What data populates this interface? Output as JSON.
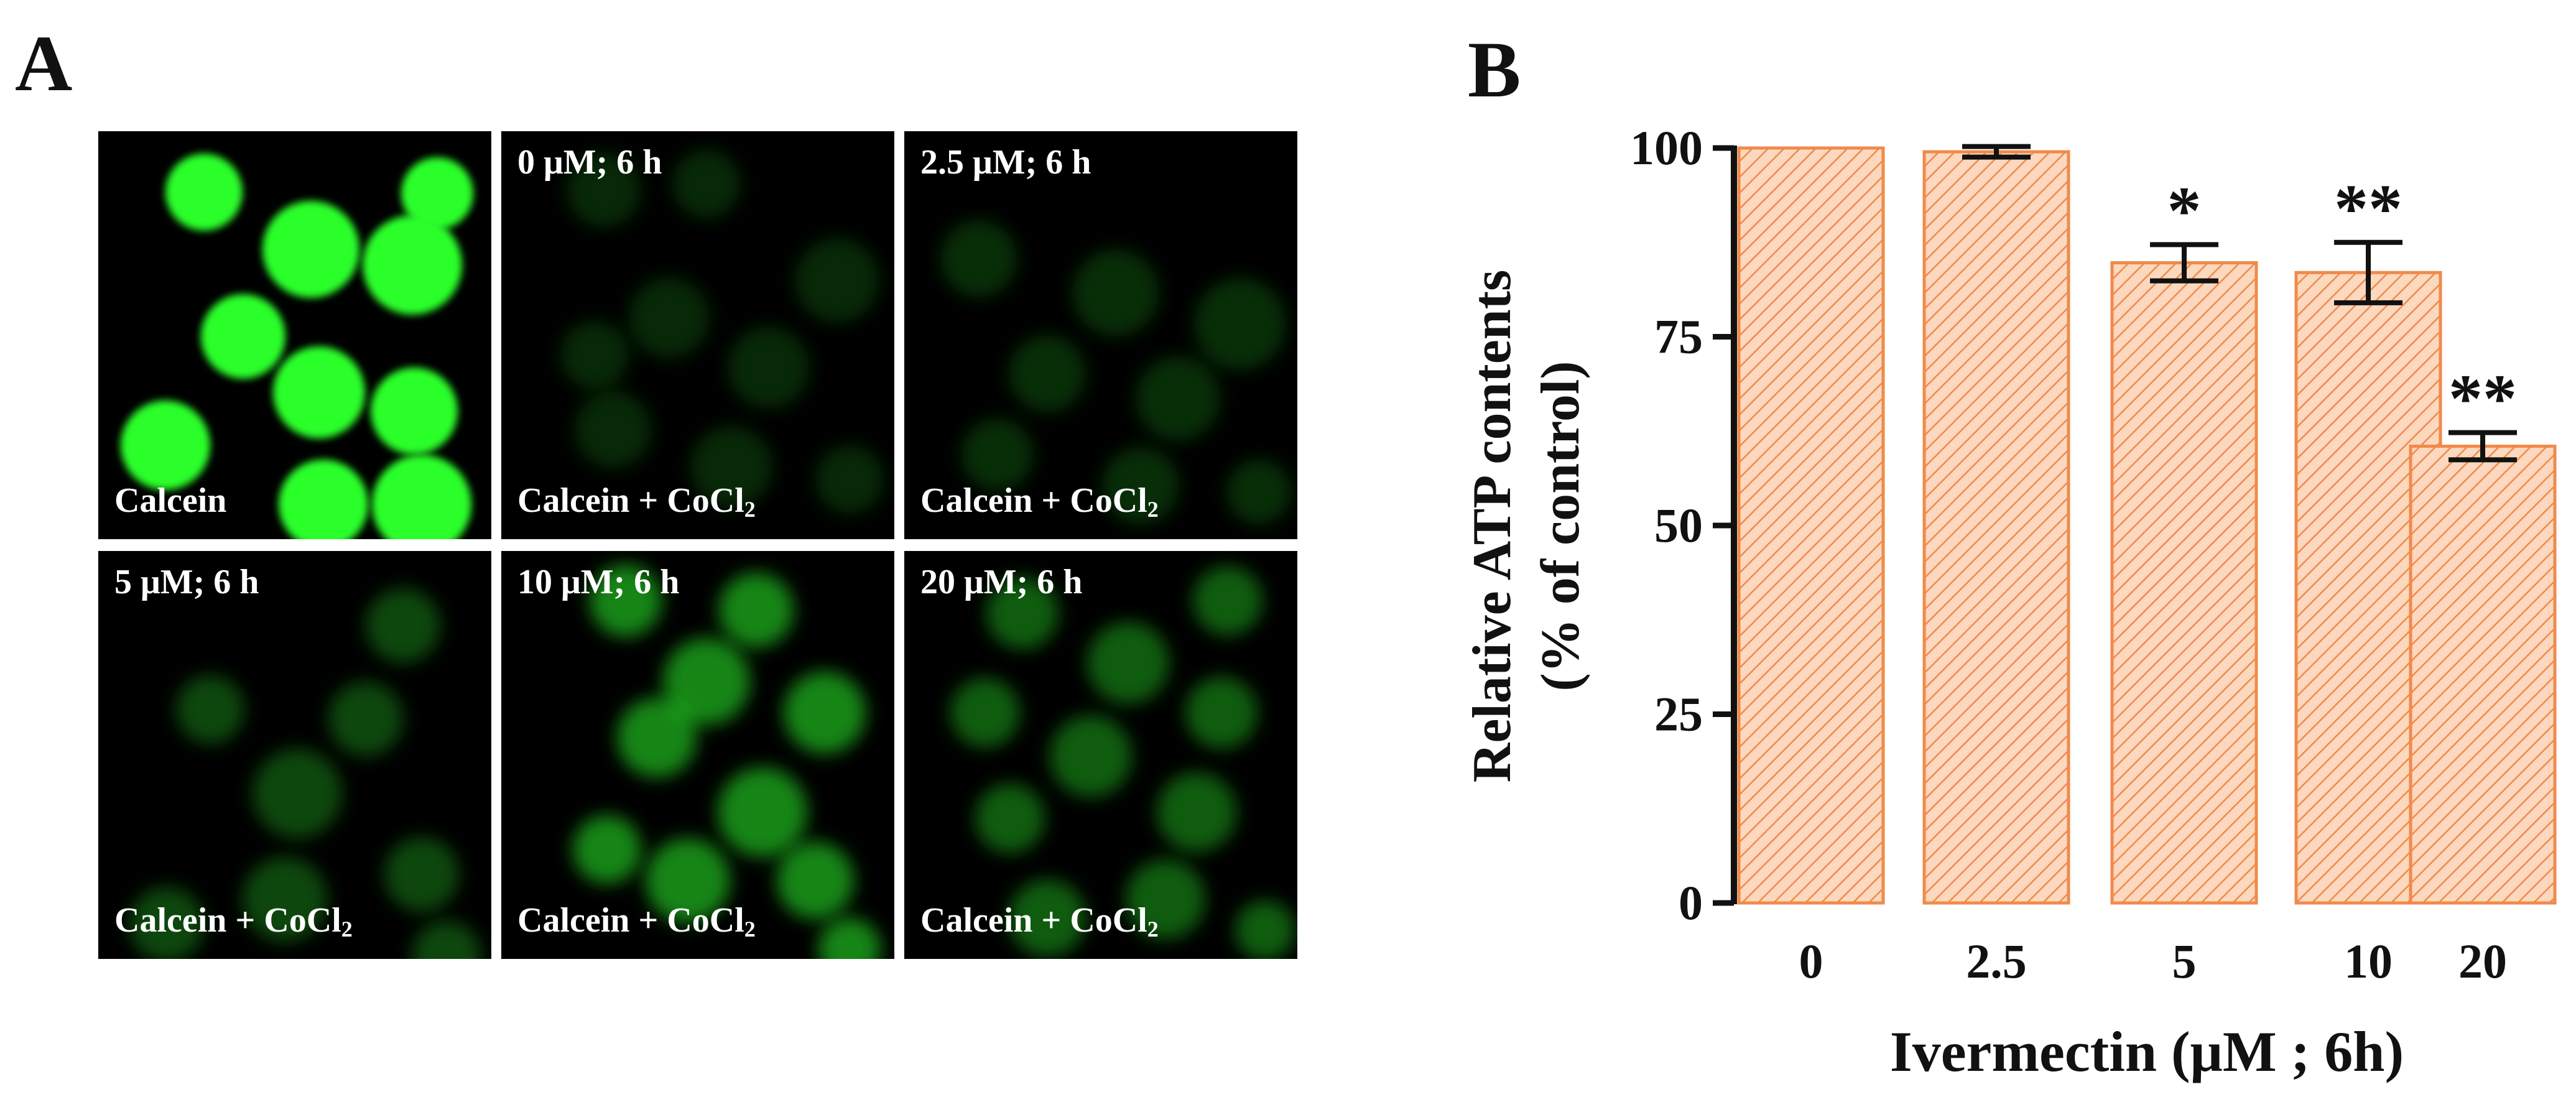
{
  "panel_a": {
    "letter": "A",
    "tiles": [
      {
        "condition": "",
        "label": "Calcein",
        "sub": "",
        "intensity": 1.0
      },
      {
        "condition": "0 μM; 6 h",
        "label": "Calcein + CoCl",
        "sub": "2",
        "intensity": 0.16
      },
      {
        "condition": "2.5 μM; 6 h",
        "label": "Calcein + CoCl",
        "sub": "2",
        "intensity": 0.18
      },
      {
        "condition": "5 μM; 6 h",
        "label": "Calcein + CoCl",
        "sub": "2",
        "intensity": 0.28
      },
      {
        "condition": "10 μM; 6 h",
        "label": "Calcein + CoCl",
        "sub": "2",
        "intensity": 0.52
      },
      {
        "condition": "20 μM; 6 h",
        "label": "Calcein + CoCl",
        "sub": "2",
        "intensity": 0.36
      }
    ],
    "colors": {
      "fluorescence": "#2bff2b",
      "background": "#000000"
    }
  },
  "panel_b": {
    "letter": "B"
  },
  "chart_data": {
    "type": "bar",
    "categories": [
      "0",
      "2.5",
      "5",
      "10",
      "20"
    ],
    "values": [
      100,
      99.5,
      84.8,
      83.5,
      60.5
    ],
    "errors": [
      0,
      0.7,
      2.4,
      4.0,
      1.8
    ],
    "significance": [
      "",
      "",
      "*",
      "**",
      "**"
    ],
    "ylabel": "Relative ATP contents",
    "ylabel2": "(% of control)",
    "xlabel": "Ivermectin (μM ; 6h)",
    "ylim": [
      0,
      100
    ],
    "yticks": [
      0,
      25,
      50,
      75,
      100
    ],
    "bar_fill": "#fbd8be",
    "bar_hatch": "#f08a4b",
    "grid": false
  }
}
